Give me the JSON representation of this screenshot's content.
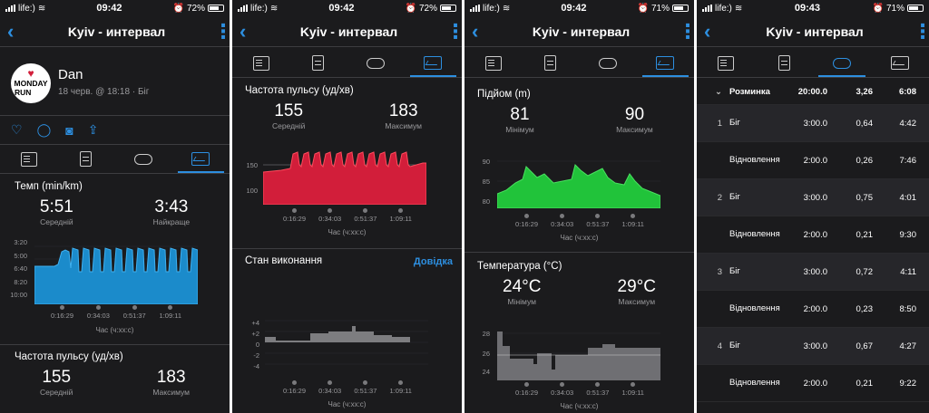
{
  "colors": {
    "accent": "#2d8fe0",
    "pace": "#1b8bcb",
    "hr": "#d21e3a",
    "elev": "#21c33a",
    "temp": "#6f6f73",
    "perf": "#7d7d80"
  },
  "screens": [
    {
      "status": {
        "carrier": "life:)",
        "time": "09:42",
        "battery": "72%"
      },
      "title": "Kyiv - интервал"
    },
    {
      "status": {
        "carrier": "life:)",
        "time": "09:42",
        "battery": "72%"
      },
      "title": "Kyiv - интервал"
    },
    {
      "status": {
        "carrier": "life:)",
        "time": "09:42",
        "battery": "71%"
      },
      "title": "Kyiv - интервал"
    },
    {
      "status": {
        "carrier": "life:)",
        "time": "09:43",
        "battery": "71%"
      },
      "title": "Kyiv - интервал"
    }
  ],
  "profile": {
    "name": "Dan",
    "meta": "18 черв. @ 18:18 · Біг",
    "avatar_text_1": "MONDAY",
    "avatar_text_2": "RUN"
  },
  "tabs_icons": [
    "summary-icon",
    "details-icon",
    "laps-icon",
    "charts-icon"
  ],
  "charts": {
    "pace": {
      "title": "Темп (min/km)",
      "avg": "5:51",
      "avg_label": "Середній",
      "best": "3:43",
      "best_label": "Найкраще",
      "yticks": [
        "3:20",
        "5:00",
        "6:40",
        "8:20",
        "10:00"
      ],
      "xticks": [
        "0:16:29",
        "0:34:03",
        "0:51:37",
        "1:09:11"
      ],
      "xlabel": "Час (ч:хх:с)"
    },
    "hr_mini": {
      "title": "Частота пульсу (уд/хв)",
      "avg": "155",
      "avg_label": "Середній",
      "max": "183",
      "max_label": "Максимум"
    },
    "hr": {
      "title": "Частота пульсу (уд/хв)",
      "avg": "155",
      "avg_label": "Середній",
      "max": "183",
      "max_label": "Максимум",
      "yticks": [
        "150",
        "100"
      ],
      "xticks": [
        "0:16:29",
        "0:34:03",
        "0:51:37",
        "1:09:11"
      ],
      "xlabel": "Час (ч:хх:с)"
    },
    "perf": {
      "title": "Стан виконання",
      "help": "Довідка",
      "yticks": [
        "+4",
        "+2",
        "0",
        "-2",
        "-4"
      ],
      "xticks": [
        "0:16:29",
        "0:34:03",
        "0:51:37",
        "1:09:11"
      ],
      "xlabel": "Час (ч:хх:с)"
    },
    "elev": {
      "title": "Підйом (m)",
      "min": "81",
      "min_label": "Мінімум",
      "max": "90",
      "max_label": "Максимум",
      "yticks": [
        "90",
        "85",
        "80"
      ],
      "xticks": [
        "0:16:29",
        "0:34:03",
        "0:51:37",
        "1:09:11"
      ],
      "xlabel": "Час (ч:хх:с)"
    },
    "temp": {
      "title": "Температура (°C)",
      "min": "24°C",
      "min_label": "Мінімум",
      "max": "29°C",
      "max_label": "Максимум",
      "yticks": [
        "28",
        "26",
        "24"
      ],
      "xticks": [
        "0:16:29",
        "0:34:03",
        "0:51:37",
        "1:09:11"
      ],
      "xlabel": "Час (ч:хх:с)"
    }
  },
  "chart_data": [
    {
      "type": "area",
      "title": "Темп (min/km)",
      "xlabel": "Час (ч:хх:с)",
      "x_ticks": [
        "0:16:29",
        "0:34:03",
        "0:51:37",
        "1:09:11"
      ],
      "y_ticks": [
        "3:20",
        "5:00",
        "6:40",
        "8:20",
        "10:00"
      ],
      "y_inverted": true,
      "summary": {
        "Середній": "5:51",
        "Найкраще": "3:43"
      }
    },
    {
      "type": "area",
      "title": "Частота пульсу (уд/хв)",
      "xlabel": "Час (ч:хх:с)",
      "x_ticks": [
        "0:16:29",
        "0:34:03",
        "0:51:37",
        "1:09:11"
      ],
      "y_ticks": [
        "150",
        "100"
      ],
      "summary": {
        "Середній": 155,
        "Максимум": 183
      }
    },
    {
      "type": "area",
      "title": "Стан виконання",
      "xlabel": "Час (ч:хх:с)",
      "x_ticks": [
        "0:16:29",
        "0:34:03",
        "0:51:37",
        "1:09:11"
      ],
      "y_ticks": [
        "+4",
        "+2",
        "0",
        "-2",
        "-4"
      ]
    },
    {
      "type": "area",
      "title": "Підйом (m)",
      "xlabel": "Час (ч:хх:с)",
      "x_ticks": [
        "0:16:29",
        "0:34:03",
        "0:51:37",
        "1:09:11"
      ],
      "y_ticks": [
        "90",
        "85",
        "80"
      ],
      "summary": {
        "Мінімум": 81,
        "Максимум": 90
      }
    },
    {
      "type": "area",
      "title": "Температура (°C)",
      "xlabel": "Час (ч:хх:с)",
      "x_ticks": [
        "0:16:29",
        "0:34:03",
        "0:51:37",
        "1:09:11"
      ],
      "y_ticks": [
        "28",
        "26",
        "24"
      ],
      "summary": {
        "Мінімум": "24°C",
        "Максимум": "29°C"
      }
    }
  ],
  "laps": {
    "rows": [
      {
        "num": "",
        "name": "Розминка",
        "time": "20:00.0",
        "dist": "3,26",
        "pace": "6:08",
        "header": true
      },
      {
        "num": "1",
        "name": "Біг",
        "time": "3:00.0",
        "dist": "0,64",
        "pace": "4:42"
      },
      {
        "num": "",
        "name": "Відновлення",
        "time": "2:00.0",
        "dist": "0,26",
        "pace": "7:46"
      },
      {
        "num": "2",
        "name": "Біг",
        "time": "3:00.0",
        "dist": "0,75",
        "pace": "4:01"
      },
      {
        "num": "",
        "name": "Відновлення",
        "time": "2:00.0",
        "dist": "0,21",
        "pace": "9:30"
      },
      {
        "num": "3",
        "name": "Біг",
        "time": "3:00.0",
        "dist": "0,72",
        "pace": "4:11"
      },
      {
        "num": "",
        "name": "Відновлення",
        "time": "2:00.0",
        "dist": "0,23",
        "pace": "8:50"
      },
      {
        "num": "4",
        "name": "Біг",
        "time": "3:00.0",
        "dist": "0,67",
        "pace": "4:27"
      },
      {
        "num": "",
        "name": "Відновлення",
        "time": "2:00.0",
        "dist": "0,21",
        "pace": "9:22"
      }
    ]
  }
}
